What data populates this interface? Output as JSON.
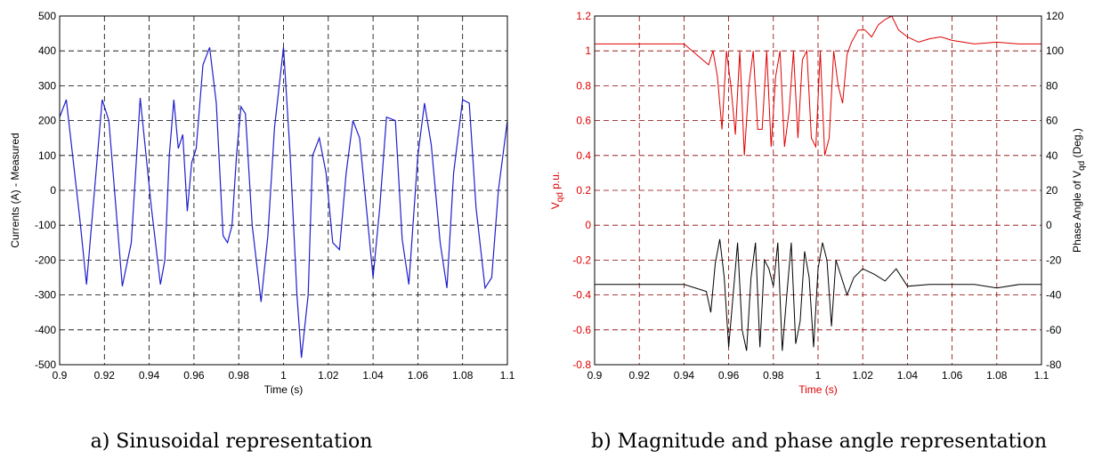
{
  "colors": {
    "trace_a": "#1f1fcc",
    "trace_mag": "#e00000",
    "trace_phase": "#000000",
    "grid_a": "#000000",
    "grid_b": "#8b0000"
  },
  "panel_a": {
    "caption": "a) Sinusoidal representation"
  },
  "panel_b": {
    "caption": "b) Magnitude and phase angle representation",
    "ylabel_left_main": "V",
    "ylabel_left_sub": "qd",
    "ylabel_left_rest": " p.u.",
    "ylabel_right_main": "Phase Angle of V",
    "ylabel_right_sub": "qd",
    "ylabel_right_rest": " (Deg.)"
  },
  "chart_data": [
    {
      "type": "line",
      "xlabel": "Time (s)",
      "ylabel": "Currents (A) - Measured",
      "xlim": [
        0.9,
        1.1
      ],
      "ylim": [
        -500,
        500
      ],
      "grid": true,
      "xticks": [
        "0.9",
        "0.92",
        "0.94",
        "0.96",
        "0.98",
        "1",
        "1.02",
        "1.04",
        "1.06",
        "1.08",
        "1.1"
      ],
      "yticks": [
        "500",
        "400",
        "300",
        "200",
        "100",
        "0",
        "-100",
        "-200",
        "-300",
        "-400",
        "-500"
      ],
      "series": [
        {
          "x": [
            0.9,
            0.903,
            0.909,
            0.912,
            0.919,
            0.922,
            0.928,
            0.932,
            0.936,
            0.941,
            0.945,
            0.947,
            0.949,
            0.951,
            0.953,
            0.955,
            0.957,
            0.959,
            0.961,
            0.964,
            0.967,
            0.97,
            0.973,
            0.975,
            0.977,
            0.979,
            0.981,
            0.983,
            0.986,
            0.99,
            0.993,
            0.996,
            1.0,
            1.003,
            1.006,
            1.008,
            1.011,
            1.013,
            1.016,
            1.019,
            1.022,
            1.025,
            1.028,
            1.031,
            1.034,
            1.037,
            1.04,
            1.043,
            1.046,
            1.05,
            1.053,
            1.056,
            1.06,
            1.063,
            1.066,
            1.07,
            1.073,
            1.076,
            1.08,
            1.083,
            1.086,
            1.09,
            1.093,
            1.096,
            1.1
          ],
          "y": [
            210,
            260,
            -80,
            -270,
            260,
            200,
            -275,
            -150,
            265,
            -50,
            -270,
            -200,
            100,
            260,
            120,
            160,
            -60,
            80,
            120,
            360,
            410,
            250,
            -130,
            -150,
            -100,
            100,
            240,
            220,
            -100,
            -320,
            -130,
            180,
            410,
            100,
            -300,
            -480,
            -300,
            100,
            150,
            50,
            -150,
            -170,
            50,
            200,
            150,
            -50,
            -250,
            -50,
            210,
            200,
            -140,
            -270,
            100,
            250,
            130,
            -150,
            -280,
            50,
            260,
            250,
            -50,
            -280,
            -250,
            0,
            200
          ]
        }
      ]
    },
    {
      "type": "line",
      "xlabel": "Time (s)",
      "ylabel": "Vqd p.u.",
      "y2label": "Phase Angle of Vqd (Deg.)",
      "xlim": [
        0.9,
        1.1
      ],
      "ylim": [
        -0.8,
        1.2
      ],
      "y2lim": [
        -80,
        120
      ],
      "grid": true,
      "xticks": [
        "0.9",
        "0.92",
        "0.94",
        "0.96",
        "0.98",
        "1",
        "1.02",
        "1.04",
        "1.06",
        "1.08",
        "1.1"
      ],
      "yticks": [
        "1.2",
        "1",
        "0.8",
        "0.6",
        "0.4",
        "0.2",
        "0",
        "-0.2",
        "-0.4",
        "-0.6",
        "-0.8"
      ],
      "y2ticks": [
        "120",
        "100",
        "80",
        "60",
        "40",
        "20",
        "0",
        "-20",
        "-40",
        "-60",
        "-80"
      ],
      "series": [
        {
          "name": "Vqd",
          "axis": "left",
          "x": [
            0.9,
            0.92,
            0.94,
            0.951,
            0.953,
            0.955,
            0.957,
            0.959,
            0.961,
            0.963,
            0.965,
            0.967,
            0.969,
            0.971,
            0.973,
            0.975,
            0.977,
            0.979,
            0.981,
            0.983,
            0.985,
            0.987,
            0.989,
            0.991,
            0.993,
            0.995,
            0.997,
            0.999,
            1.001,
            1.003,
            1.005,
            1.007,
            1.009,
            1.011,
            1.013,
            1.015,
            1.018,
            1.021,
            1.024,
            1.027,
            1.03,
            1.033,
            1.036,
            1.04,
            1.045,
            1.05,
            1.055,
            1.06,
            1.07,
            1.08,
            1.09,
            1.1
          ],
          "y": [
            1.04,
            1.04,
            1.04,
            0.92,
            1.0,
            0.85,
            0.55,
            1.0,
            0.8,
            0.52,
            1.0,
            0.4,
            0.8,
            1.0,
            0.55,
            0.55,
            1.0,
            0.45,
            0.85,
            1.0,
            0.45,
            0.65,
            1.0,
            0.5,
            0.95,
            1.0,
            0.5,
            0.45,
            1.0,
            0.4,
            0.5,
            1.0,
            0.8,
            0.7,
            0.98,
            1.05,
            1.12,
            1.12,
            1.08,
            1.15,
            1.18,
            1.2,
            1.12,
            1.08,
            1.05,
            1.07,
            1.08,
            1.06,
            1.04,
            1.05,
            1.04,
            1.04
          ]
        },
        {
          "name": "Phase angle",
          "axis": "right",
          "x": [
            0.9,
            0.92,
            0.94,
            0.95,
            0.952,
            0.954,
            0.956,
            0.958,
            0.96,
            0.962,
            0.964,
            0.966,
            0.968,
            0.97,
            0.972,
            0.974,
            0.976,
            0.978,
            0.98,
            0.982,
            0.984,
            0.986,
            0.988,
            0.99,
            0.992,
            0.994,
            0.996,
            0.998,
            1.0,
            1.002,
            1.004,
            1.006,
            1.008,
            1.01,
            1.013,
            1.016,
            1.02,
            1.025,
            1.03,
            1.035,
            1.04,
            1.05,
            1.06,
            1.07,
            1.08,
            1.09,
            1.1
          ],
          "y": [
            -34,
            -34,
            -34,
            -38,
            -50,
            -22,
            -8,
            -30,
            -70,
            -40,
            -10,
            -60,
            -72,
            -30,
            -10,
            -70,
            -20,
            -25,
            -35,
            -10,
            -72,
            -40,
            -10,
            -68,
            -55,
            -15,
            -30,
            -70,
            -25,
            -10,
            -20,
            -58,
            -20,
            -28,
            -40,
            -30,
            -25,
            -28,
            -32,
            -25,
            -35,
            -34,
            -34,
            -34,
            -36,
            -34,
            -34
          ]
        }
      ]
    }
  ]
}
